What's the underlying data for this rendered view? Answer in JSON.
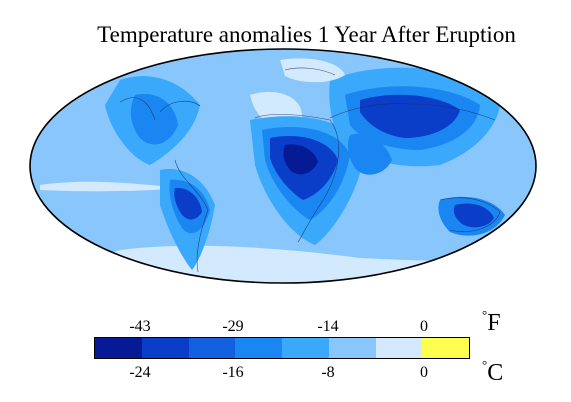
{
  "title": "Temperature anomalies 1 Year After Eruption",
  "legend": {
    "fahrenheit_unit": "F",
    "celsius_unit": "C",
    "degree_symbol": "°",
    "fahrenheit_ticks": [
      "-43",
      "-29",
      "-14",
      "0"
    ],
    "celsius_ticks": [
      "-24",
      "-16",
      "-8",
      "0"
    ],
    "bins": [
      {
        "color": "#061a96"
      },
      {
        "color": "#0a3ec8"
      },
      {
        "color": "#1060e0"
      },
      {
        "color": "#1a86f2"
      },
      {
        "color": "#3aa8fb"
      },
      {
        "color": "#88c6fc"
      },
      {
        "color": "#d3e9fd"
      },
      {
        "color": "#ffff4f"
      }
    ]
  },
  "map": {
    "projection": "Mollweide (Hammer) world map",
    "ocean_color": "#88c6fc",
    "coastline_color": "#1b2a5a",
    "outline_color": "#000000"
  }
}
